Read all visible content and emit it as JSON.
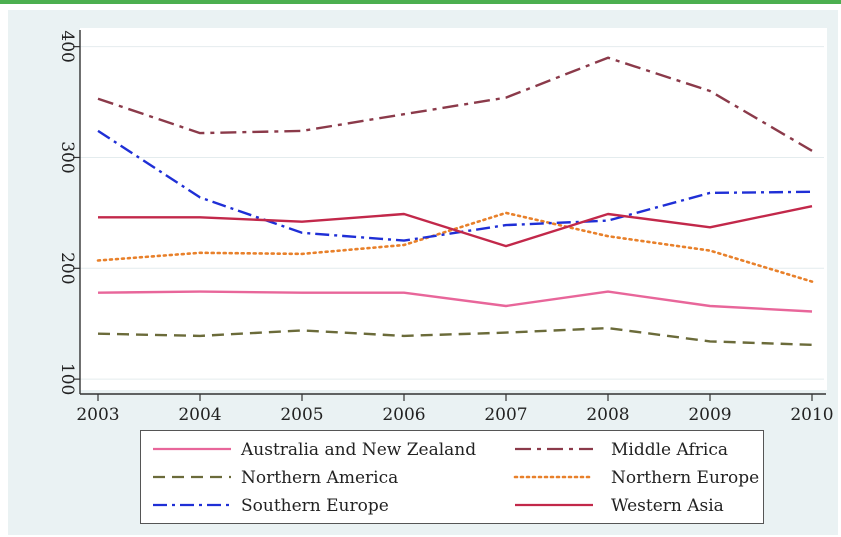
{
  "chart_data": {
    "type": "line",
    "title": "",
    "xlabel": "",
    "ylabel": "",
    "x": [
      2003,
      2004,
      2005,
      2006,
      2007,
      2008,
      2009,
      2010
    ],
    "x_ticks": [
      "2003",
      "2004",
      "2005",
      "2006",
      "2007",
      "2008",
      "2009",
      "2010"
    ],
    "y_ticks": [
      "100",
      "200",
      "300",
      "400"
    ],
    "ylim": [
      92,
      415
    ],
    "grid": true,
    "legend_position": "bottom",
    "series": [
      {
        "name": "Australia and New Zealand",
        "color": "#e8669a",
        "dash": "solid",
        "values": [
          178,
          179,
          178,
          178,
          166,
          179,
          166,
          161
        ]
      },
      {
        "name": "Middle Africa",
        "color": "#8b3a4a",
        "dash": "dashdot-long",
        "values": [
          353,
          322,
          324,
          339,
          354,
          390,
          360,
          306
        ]
      },
      {
        "name": "Northern America",
        "color": "#6b6b3a",
        "dash": "dashed",
        "values": [
          141,
          139,
          144,
          139,
          142,
          146,
          134,
          131
        ]
      },
      {
        "name": "Northern Europe",
        "color": "#e8802a",
        "dash": "dotted",
        "values": [
          207,
          214,
          213,
          221,
          250,
          229,
          216,
          188
        ]
      },
      {
        "name": "Southern Europe",
        "color": "#1f2fd6",
        "dash": "dashdot",
        "values": [
          324,
          264,
          232,
          225,
          239,
          243,
          268,
          269
        ]
      },
      {
        "name": "Western Asia",
        "color": "#c2284a",
        "dash": "solid",
        "values": [
          246,
          246,
          242,
          249,
          220,
          249,
          237,
          256
        ]
      }
    ]
  }
}
